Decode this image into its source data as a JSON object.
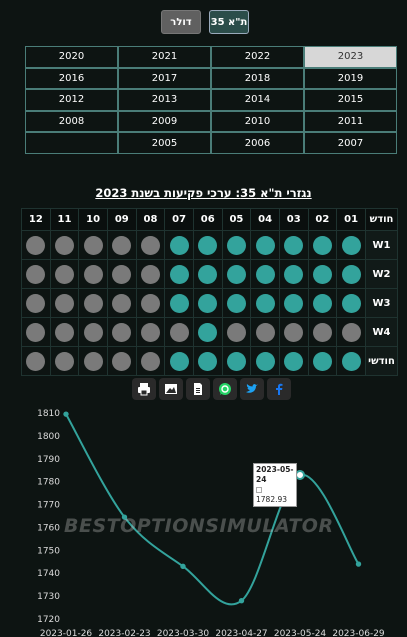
{
  "toggle": {
    "usd_label": "דולר",
    "ta_label": "ת\"א 35"
  },
  "years": [
    {
      "label": "2020",
      "selected": false
    },
    {
      "label": "2021",
      "selected": false
    },
    {
      "label": "2022",
      "selected": false
    },
    {
      "label": "2023",
      "selected": true
    },
    {
      "label": "2016",
      "selected": false
    },
    {
      "label": "2017",
      "selected": false
    },
    {
      "label": "2018",
      "selected": false
    },
    {
      "label": "2019",
      "selected": false
    },
    {
      "label": "2012",
      "selected": false
    },
    {
      "label": "2013",
      "selected": false
    },
    {
      "label": "2014",
      "selected": false
    },
    {
      "label": "2015",
      "selected": false
    },
    {
      "label": "2008",
      "selected": false
    },
    {
      "label": "2009",
      "selected": false
    },
    {
      "label": "2010",
      "selected": false
    },
    {
      "label": "2011",
      "selected": false
    },
    {
      "label": "",
      "selected": false
    },
    {
      "label": "2005",
      "selected": false
    },
    {
      "label": "2006",
      "selected": false
    },
    {
      "label": "2007",
      "selected": false
    }
  ],
  "grid_title": "נגזרי ת\"א 35: ערכי פקיעות בשנת 2023",
  "grid": {
    "row_header": "חודש",
    "months": [
      "01",
      "02",
      "03",
      "04",
      "05",
      "06",
      "07",
      "08",
      "09",
      "10",
      "11",
      "12"
    ],
    "rows": [
      {
        "label": "W1",
        "states": [
          1,
          1,
          1,
          1,
          1,
          1,
          1,
          0,
          0,
          0,
          0,
          0
        ]
      },
      {
        "label": "W2",
        "states": [
          1,
          1,
          1,
          1,
          1,
          1,
          1,
          0,
          0,
          0,
          0,
          0
        ]
      },
      {
        "label": "W3",
        "states": [
          1,
          1,
          1,
          1,
          1,
          1,
          1,
          0,
          0,
          0,
          0,
          0
        ]
      },
      {
        "label": "W4",
        "states": [
          0,
          0,
          0,
          0,
          0,
          1,
          0,
          0,
          0,
          0,
          0,
          0
        ]
      },
      {
        "label": "חודשי",
        "states": [
          1,
          1,
          1,
          1,
          1,
          1,
          1,
          0,
          0,
          0,
          0,
          0
        ]
      }
    ],
    "colors": {
      "on": "#33a39c",
      "off": "#7a7a7a"
    }
  },
  "share_icons": [
    "print-icon",
    "image-icon",
    "document-icon",
    "whatsapp-icon",
    "twitter-icon",
    "facebook-icon"
  ],
  "watermark": "BESTOPTIONSIMULATOR",
  "tooltip": {
    "date": "2023-05-24",
    "value": "1782.93"
  },
  "chart_data": {
    "type": "line",
    "x": [
      "2023-01-26",
      "2023-02-23",
      "2023-03-30",
      "2023-04-27",
      "2023-05-24",
      "2023-06-29"
    ],
    "values": [
      1809.5,
      1764.5,
      1743,
      1728,
      1782.93,
      1744
    ],
    "ylim": [
      1720,
      1810
    ],
    "yticks": [
      1720,
      1730,
      1740,
      1750,
      1760,
      1770,
      1780,
      1790,
      1800,
      1810
    ],
    "line_color": "#33a39c",
    "grid": false
  }
}
